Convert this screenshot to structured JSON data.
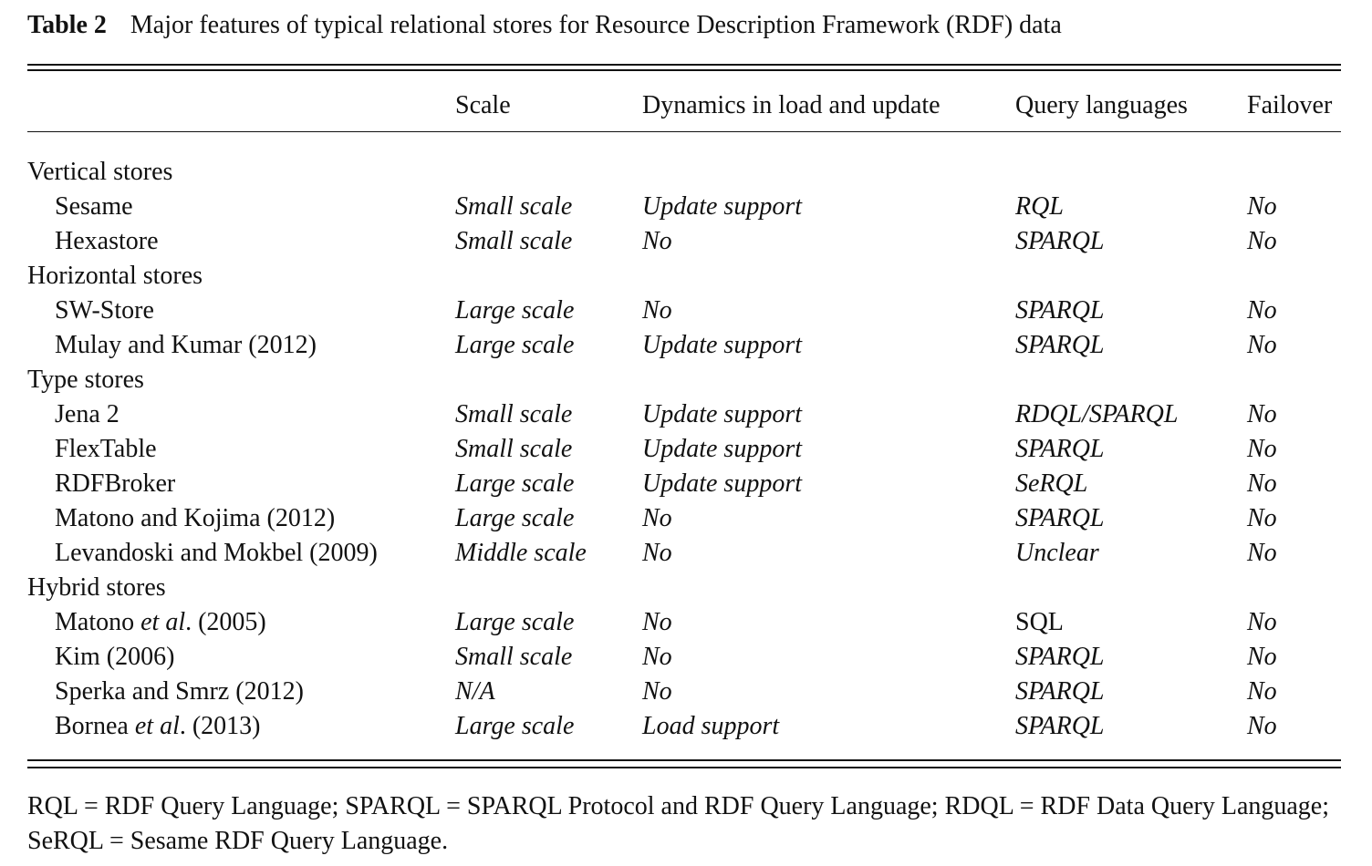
{
  "caption": {
    "label": "Table 2",
    "text": "Major features of typical relational stores for Resource Description Framework (RDF) data"
  },
  "headers": [
    "",
    "Scale",
    "Dynamics in load and update",
    "Query languages",
    "Failover"
  ],
  "groups": [
    {
      "name": "Vertical stores",
      "rows": [
        {
          "store": [
            "Sesame"
          ],
          "scale": "Small scale",
          "dynamics": "Update support",
          "query": "RQL",
          "query_italic": true,
          "failover": "No"
        },
        {
          "store": [
            "Hexastore"
          ],
          "scale": "Small scale",
          "dynamics": "No",
          "query": "SPARQL",
          "query_italic": true,
          "failover": "No"
        }
      ]
    },
    {
      "name": "Horizontal stores",
      "rows": [
        {
          "store": [
            "SW-Store"
          ],
          "scale": "Large scale",
          "dynamics": "No",
          "query": "SPARQL",
          "query_italic": true,
          "failover": "No"
        },
        {
          "store": [
            "Mulay and Kumar (2012)"
          ],
          "scale": "Large scale",
          "dynamics": "Update support",
          "query": "SPARQL",
          "query_italic": true,
          "failover": "No"
        }
      ]
    },
    {
      "name": "Type stores",
      "rows": [
        {
          "store": [
            "Jena 2"
          ],
          "scale": "Small scale",
          "dynamics": "Update support",
          "query": "RDQL/SPARQL",
          "query_italic": true,
          "failover": "No"
        },
        {
          "store": [
            "FlexTable"
          ],
          "scale": "Small scale",
          "dynamics": "Update support",
          "query": "SPARQL",
          "query_italic": true,
          "failover": "No"
        },
        {
          "store": [
            "RDFBroker"
          ],
          "scale": "Large scale",
          "dynamics": "Update support",
          "query": "SeRQL",
          "query_italic": true,
          "failover": "No"
        },
        {
          "store": [
            "Matono and Kojima (2012)"
          ],
          "scale": "Large scale",
          "dynamics": "No",
          "query": "SPARQL",
          "query_italic": true,
          "failover": "No"
        },
        {
          "store": [
            "Levandoski and Mokbel (2009)"
          ],
          "scale": "Middle scale",
          "dynamics": "No",
          "query": "Unclear",
          "query_italic": true,
          "failover": "No"
        }
      ]
    },
    {
      "name": "Hybrid stores",
      "rows": [
        {
          "store": [
            "Matono ",
            "et al",
            ". (2005)"
          ],
          "scale": "Large scale",
          "dynamics": "No",
          "query": "SQL",
          "query_italic": false,
          "failover": "No"
        },
        {
          "store": [
            "Kim (2006)"
          ],
          "scale": "Small scale",
          "dynamics": "No",
          "query": "SPARQL",
          "query_italic": true,
          "failover": "No"
        },
        {
          "store": [
            "Sperka and Smrz (2012)"
          ],
          "scale": "N/A",
          "dynamics": "No",
          "query": "SPARQL",
          "query_italic": true,
          "failover": "No"
        },
        {
          "store": [
            "Bornea ",
            "et al",
            ". (2013)"
          ],
          "scale": "Large scale",
          "dynamics": "Load support",
          "query": "SPARQL",
          "query_italic": true,
          "failover": "No"
        }
      ]
    }
  ],
  "footnote": "RQL = RDF Query Language; SPARQL = SPARQL Protocol and RDF Query Language; RDQL = RDF Data Query Language; SeRQL = Sesame RDF Query Language."
}
